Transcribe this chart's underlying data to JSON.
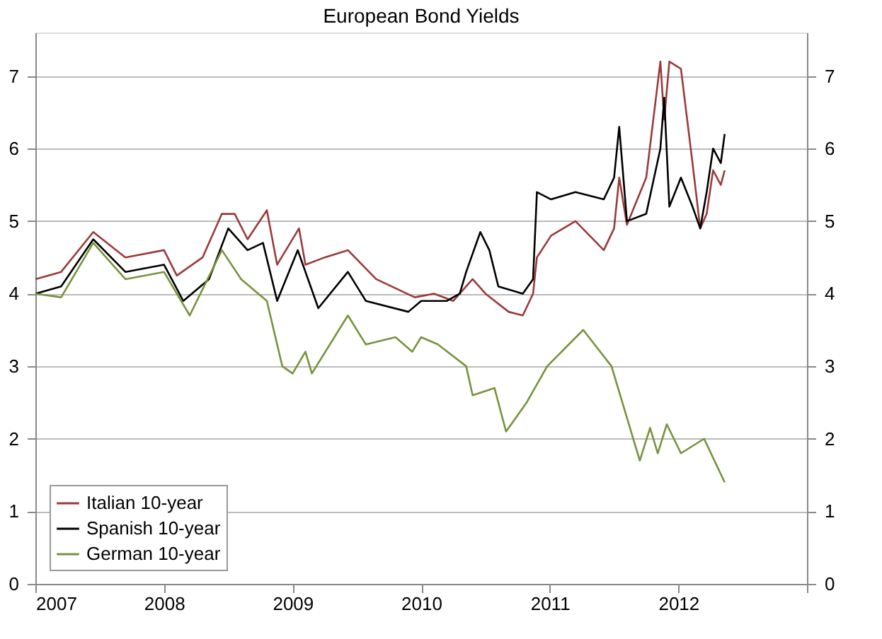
{
  "chart_data": {
    "type": "line",
    "title": "European Bond Yields",
    "xlim": [
      2007,
      2013
    ],
    "xticks": [
      2007,
      2008,
      2009,
      2010,
      2011,
      2012,
      {
        "value": 2013,
        "label": null
      }
    ],
    "ylim": [
      0,
      7.6
    ],
    "yticks": [
      0,
      1,
      2,
      3,
      4,
      5,
      6,
      7
    ],
    "y2lim": [
      0,
      7.6
    ],
    "y2ticks": [
      0,
      1,
      2,
      3,
      4,
      5,
      6,
      7
    ],
    "grid": "y",
    "legend": "bottom left",
    "line_style": "solid",
    "marker": "none",
    "series": [
      {
        "name": "Italian 10-year",
        "color": "#9c3a3a",
        "x": [
          2007.0,
          2007.2,
          2007.45,
          2007.7,
          2008.0,
          2008.1,
          2008.3,
          2008.45,
          2008.55,
          2008.65,
          2008.8,
          2008.88,
          2009.05,
          2009.1,
          2009.25,
          2009.43,
          2009.65,
          2009.95,
          2010.1,
          2010.25,
          2010.4,
          2010.5,
          2010.68,
          2010.79,
          2010.87,
          2010.9,
          2011.01,
          2011.2,
          2011.42,
          2011.5,
          2011.54,
          2011.6,
          2011.75,
          2011.86,
          2011.89,
          2011.93,
          2012.02,
          2012.11,
          2012.17,
          2012.22,
          2012.27,
          2012.33,
          2012.36
        ],
        "values": [
          4.2,
          4.3,
          4.85,
          4.5,
          4.6,
          4.25,
          4.5,
          5.1,
          5.1,
          4.75,
          5.15,
          4.4,
          4.9,
          4.4,
          4.5,
          4.6,
          4.2,
          3.95,
          4.0,
          3.9,
          4.2,
          4.0,
          3.75,
          3.7,
          4.0,
          4.5,
          4.8,
          5.0,
          4.6,
          4.9,
          5.6,
          4.95,
          5.6,
          7.2,
          6.4,
          7.2,
          7.1,
          5.8,
          4.9,
          5.1,
          5.7,
          5.5,
          5.7
        ]
      },
      {
        "name": "Spanish 10-year",
        "color": "#000000",
        "x": [
          2007.0,
          2007.2,
          2007.45,
          2007.7,
          2008.0,
          2008.15,
          2008.35,
          2008.5,
          2008.65,
          2008.77,
          2008.88,
          2009.04,
          2009.2,
          2009.43,
          2009.57,
          2009.9,
          2010.0,
          2010.2,
          2010.3,
          2010.35,
          2010.46,
          2010.53,
          2010.6,
          2010.79,
          2010.87,
          2010.9,
          2011.01,
          2011.2,
          2011.42,
          2011.5,
          2011.54,
          2011.6,
          2011.75,
          2011.86,
          2011.89,
          2011.93,
          2012.02,
          2012.11,
          2012.17,
          2012.22,
          2012.27,
          2012.33,
          2012.36
        ],
        "values": [
          4.0,
          4.1,
          4.75,
          4.3,
          4.4,
          3.9,
          4.2,
          4.9,
          4.6,
          4.7,
          3.9,
          4.6,
          3.8,
          4.3,
          3.9,
          3.75,
          3.9,
          3.9,
          4.0,
          4.3,
          4.85,
          4.6,
          4.1,
          4.0,
          4.2,
          5.4,
          5.3,
          5.4,
          5.3,
          5.6,
          6.3,
          5.0,
          5.1,
          6.0,
          6.7,
          5.2,
          5.6,
          5.2,
          4.9,
          5.4,
          6.0,
          5.8,
          6.2
        ]
      },
      {
        "name": "German 10-year",
        "color": "#77933c",
        "x": [
          2007.0,
          2007.2,
          2007.45,
          2007.7,
          2008.0,
          2008.2,
          2008.45,
          2008.6,
          2008.8,
          2008.92,
          2009.0,
          2009.1,
          2009.15,
          2009.43,
          2009.57,
          2009.8,
          2009.93,
          2010.0,
          2010.13,
          2010.35,
          2010.4,
          2010.57,
          2010.66,
          2010.82,
          2010.98,
          2011.26,
          2011.48,
          2011.7,
          2011.78,
          2011.84,
          2011.91,
          2012.02,
          2012.2,
          2012.36
        ],
        "values": [
          4.0,
          3.95,
          4.7,
          4.2,
          4.3,
          3.7,
          4.6,
          4.2,
          3.9,
          3.0,
          2.9,
          3.2,
          2.9,
          3.7,
          3.3,
          3.4,
          3.2,
          3.4,
          3.3,
          3.0,
          2.6,
          2.7,
          2.1,
          2.5,
          3.0,
          3.5,
          3.0,
          1.7,
          2.15,
          1.8,
          2.2,
          1.8,
          2.0,
          1.4
        ]
      }
    ]
  }
}
